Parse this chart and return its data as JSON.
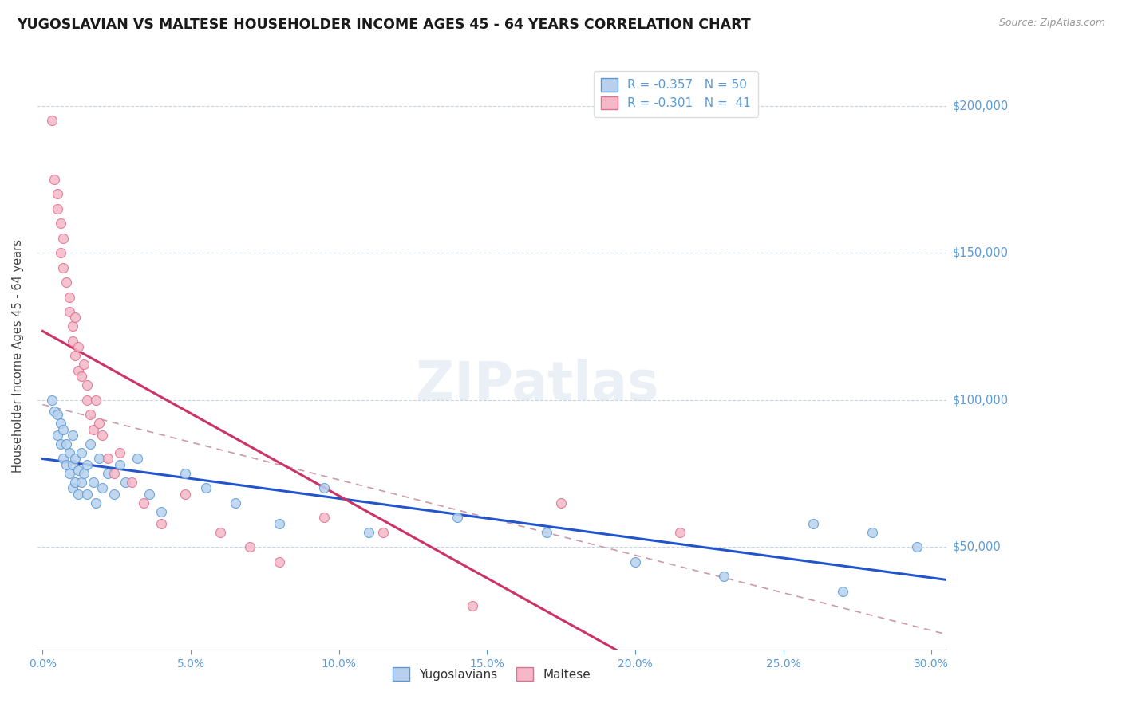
{
  "title": "YUGOSLAVIAN VS MALTESE HOUSEHOLDER INCOME AGES 45 - 64 YEARS CORRELATION CHART",
  "source": "Source: ZipAtlas.com",
  "ylabel": "Householder Income Ages 45 - 64 years",
  "ytick_labels": [
    "$50,000",
    "$100,000",
    "$150,000",
    "$200,000"
  ],
  "ytick_vals": [
    50000,
    100000,
    150000,
    200000
  ],
  "ylim": [
    15000,
    215000
  ],
  "xlim": [
    -0.002,
    0.305
  ],
  "xlabel_ticks": [
    "0.0%",
    "5.0%",
    "10.0%",
    "15.0%",
    "20.0%",
    "25.0%",
    "30.0%"
  ],
  "xlabel_vals": [
    0.0,
    0.05,
    0.1,
    0.15,
    0.2,
    0.25,
    0.3
  ],
  "background_color": "#ffffff",
  "watermark": "ZIPatlas",
  "blue_dot_face": "#b8d0ee",
  "blue_dot_edge": "#5b9bd5",
  "pink_dot_face": "#f4b8c8",
  "pink_dot_edge": "#e07090",
  "trendline_blue": "#2255cc",
  "trendline_pink": "#cc3366",
  "trendline_dashed_color": "#cc99aa",
  "grid_color": "#c8d4e8",
  "yticklabel_color": "#5b9bd5",
  "xticklabel_color": "#5b9bd5",
  "yugoslavian_x": [
    0.003,
    0.004,
    0.005,
    0.005,
    0.006,
    0.006,
    0.007,
    0.007,
    0.008,
    0.008,
    0.009,
    0.009,
    0.01,
    0.01,
    0.01,
    0.011,
    0.011,
    0.012,
    0.012,
    0.013,
    0.013,
    0.014,
    0.015,
    0.015,
    0.016,
    0.017,
    0.018,
    0.019,
    0.02,
    0.022,
    0.024,
    0.026,
    0.028,
    0.032,
    0.036,
    0.04,
    0.048,
    0.055,
    0.065,
    0.08,
    0.095,
    0.11,
    0.14,
    0.17,
    0.2,
    0.23,
    0.26,
    0.27,
    0.28,
    0.295
  ],
  "yugoslavian_y": [
    100000,
    96000,
    88000,
    95000,
    85000,
    92000,
    80000,
    90000,
    78000,
    85000,
    75000,
    82000,
    70000,
    88000,
    78000,
    72000,
    80000,
    68000,
    76000,
    72000,
    82000,
    75000,
    68000,
    78000,
    85000,
    72000,
    65000,
    80000,
    70000,
    75000,
    68000,
    78000,
    72000,
    80000,
    68000,
    62000,
    75000,
    70000,
    65000,
    58000,
    70000,
    55000,
    60000,
    55000,
    45000,
    40000,
    58000,
    35000,
    55000,
    50000
  ],
  "maltese_x": [
    0.003,
    0.004,
    0.005,
    0.005,
    0.006,
    0.006,
    0.007,
    0.007,
    0.008,
    0.009,
    0.009,
    0.01,
    0.01,
    0.011,
    0.011,
    0.012,
    0.012,
    0.013,
    0.014,
    0.015,
    0.015,
    0.016,
    0.017,
    0.018,
    0.019,
    0.02,
    0.022,
    0.024,
    0.026,
    0.03,
    0.034,
    0.04,
    0.048,
    0.06,
    0.07,
    0.08,
    0.095,
    0.115,
    0.145,
    0.175,
    0.215
  ],
  "maltese_y": [
    195000,
    175000,
    165000,
    170000,
    150000,
    160000,
    145000,
    155000,
    140000,
    130000,
    135000,
    125000,
    120000,
    115000,
    128000,
    110000,
    118000,
    108000,
    112000,
    100000,
    105000,
    95000,
    90000,
    100000,
    92000,
    88000,
    80000,
    75000,
    82000,
    72000,
    65000,
    58000,
    68000,
    55000,
    50000,
    45000,
    60000,
    55000,
    30000,
    65000,
    55000
  ]
}
